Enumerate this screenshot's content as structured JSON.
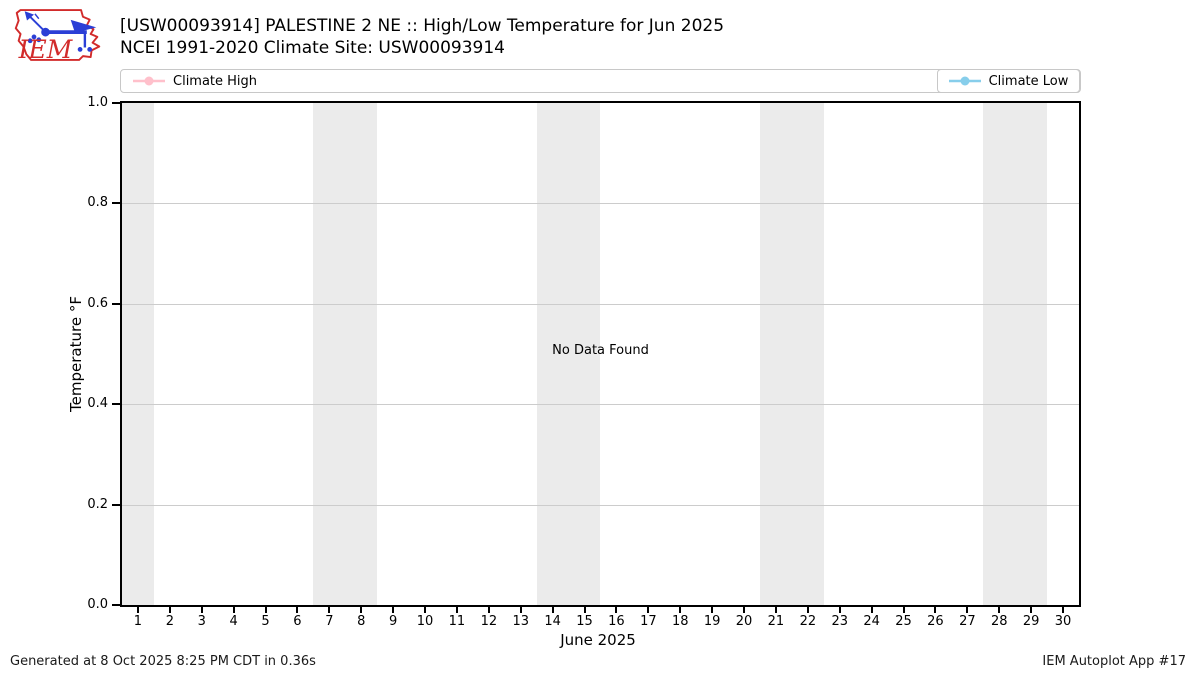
{
  "header": {
    "title": "[USW00093914] PALESTINE 2 NE :: High/Low Temperature for Jun 2025",
    "subtitle": "NCEI 1991-2020 Climate Site: USW00093914"
  },
  "logo": {
    "text": "IEM"
  },
  "legend": {
    "items": [
      {
        "label": "Climate High",
        "color": "#ffc0cb"
      },
      {
        "label": "Climate Low",
        "color": "#87ceeb"
      }
    ]
  },
  "chart_data": {
    "type": "line",
    "title": "[USW00093914] PALESTINE 2 NE :: High/Low Temperature for Jun 2025",
    "subtitle": "NCEI 1991-2020 Climate Site: USW00093914",
    "xlabel": "June 2025",
    "ylabel": "Temperature °F",
    "xlim": [
      0.5,
      30.5
    ],
    "ylim": [
      0.0,
      1.0
    ],
    "xticks": [
      1,
      2,
      3,
      4,
      5,
      6,
      7,
      8,
      9,
      10,
      11,
      12,
      13,
      14,
      15,
      16,
      17,
      18,
      19,
      20,
      21,
      22,
      23,
      24,
      25,
      26,
      27,
      28,
      29,
      30
    ],
    "yticks": [
      0.0,
      0.2,
      0.4,
      0.6,
      0.8,
      1.0
    ],
    "ytick_labels": [
      "0.0",
      "0.2",
      "0.4",
      "0.6",
      "0.8",
      "1.0"
    ],
    "grid": "horizontal",
    "legend_position": "top",
    "series": [
      {
        "name": "Climate High",
        "color": "#ffc0cb",
        "x": [],
        "values": []
      },
      {
        "name": "Climate Low",
        "color": "#87ceeb",
        "x": [],
        "values": []
      }
    ],
    "annotation": "No Data Found",
    "weekend_shading_days": [
      [
        0.5,
        1.5
      ],
      [
        6.5,
        8.5
      ],
      [
        13.5,
        15.5
      ],
      [
        20.5,
        22.5
      ],
      [
        27.5,
        29.5
      ]
    ]
  },
  "colors": {
    "band": "#ebebeb",
    "grid": "#cccccc",
    "spine": "#000000",
    "legend_border": "#c8c8c8",
    "logo_red": "#d22b2b",
    "logo_blue": "#2b3fd6"
  },
  "footer": {
    "generated": "Generated at 8 Oct 2025 8:25 PM CDT in 0.36s",
    "app": "IEM Autoplot App #17"
  }
}
